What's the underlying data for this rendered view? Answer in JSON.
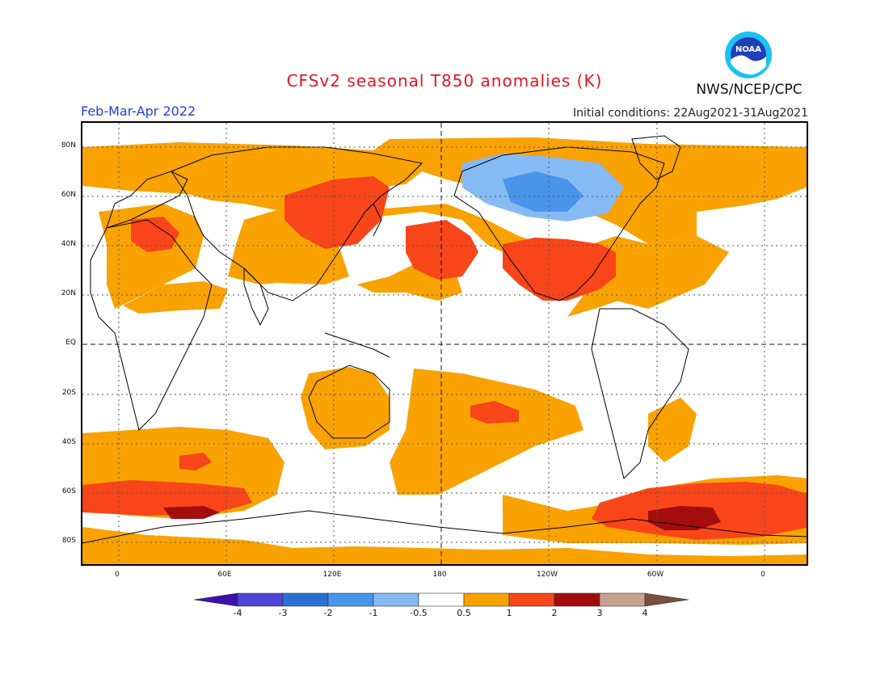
{
  "header": {
    "title": "CFSv2 seasonal T850 anomalies (K)",
    "period": "Feb-Mar-Apr 2022",
    "initial_conditions": "Initial conditions: 22Aug2021-31Aug2021",
    "agency": "NWS/NCEP/CPC",
    "logo_text": "NOAA"
  },
  "map": {
    "lat_labels": [
      "80N",
      "60N",
      "40N",
      "20N",
      "EQ",
      "20S",
      "40S",
      "60S",
      "80S"
    ],
    "lon_labels": [
      "0",
      "60E",
      "120E",
      "180",
      "120W",
      "60W",
      "0"
    ]
  },
  "legend": {
    "labels": [
      "-4",
      "-3",
      "-2",
      "-1",
      "-0.5",
      "0.5",
      "1",
      "2",
      "3",
      "4"
    ],
    "colors": [
      "#3c0fb0",
      "#4b45d6",
      "#2a6fd8",
      "#4a95ec",
      "#86baf5",
      "#ffffff",
      "#f9a200",
      "#f8451a",
      "#a30d0d",
      "#c9a08f",
      "#7a4d3e"
    ]
  }
}
